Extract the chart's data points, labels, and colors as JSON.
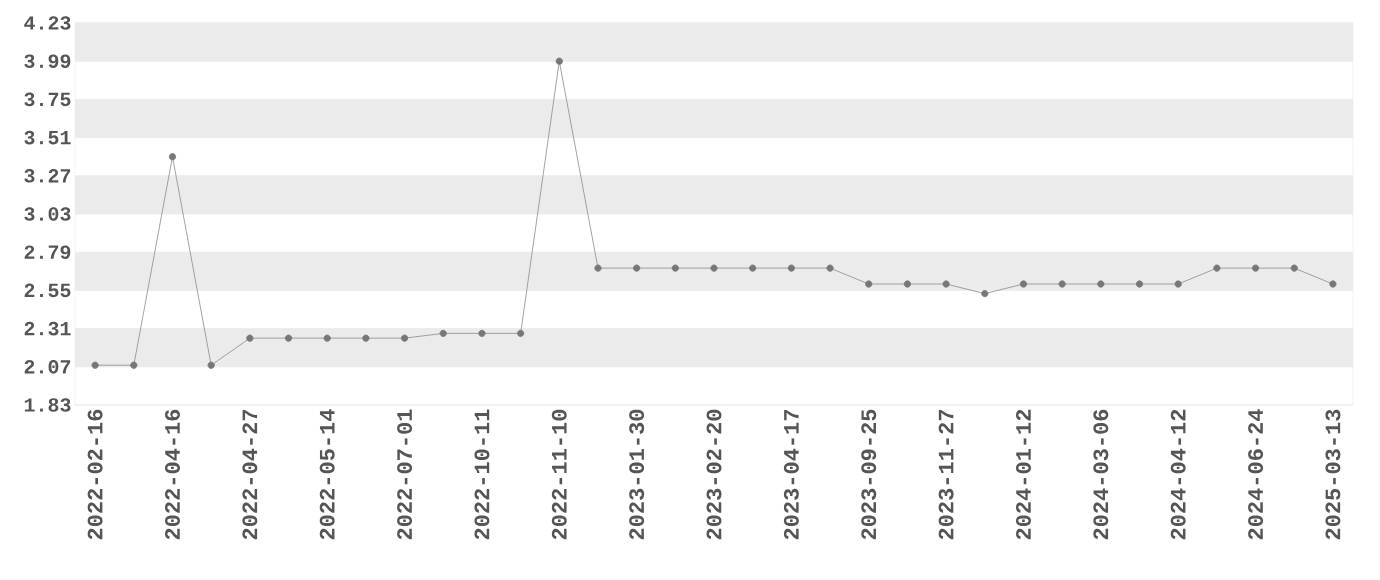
{
  "chart_data": {
    "type": "line",
    "categories": [
      "2022-02-16",
      null,
      "2022-04-16",
      null,
      "2022-04-27",
      null,
      "2022-05-14",
      null,
      "2022-07-01",
      null,
      "2022-10-11",
      null,
      "2022-11-10",
      null,
      "2023-01-30",
      null,
      "2023-02-20",
      null,
      "2023-04-17",
      null,
      "2023-09-25",
      null,
      "2023-11-27",
      null,
      "2024-01-12",
      null,
      "2024-03-06",
      null,
      "2024-04-12",
      null,
      "2024-06-24",
      null,
      "2025-03-13"
    ],
    "values": [
      2.08,
      2.08,
      3.39,
      2.08,
      2.25,
      2.25,
      2.25,
      2.25,
      2.25,
      2.28,
      2.28,
      2.28,
      3.99,
      2.69,
      2.69,
      2.69,
      2.69,
      2.69,
      2.69,
      2.69,
      2.59,
      2.59,
      2.59,
      2.53,
      2.59,
      2.59,
      2.59,
      2.59,
      2.59,
      2.69,
      2.69,
      2.69,
      2.59
    ],
    "color": "#777777",
    "ylim": [
      1.83,
      4.23
    ],
    "yticks": [
      1.83,
      2.07,
      2.31,
      2.55,
      2.79,
      3.03,
      3.27,
      3.51,
      3.75,
      3.99,
      4.23
    ],
    "grid": "y",
    "marker": "circle",
    "line_style": "solid"
  }
}
